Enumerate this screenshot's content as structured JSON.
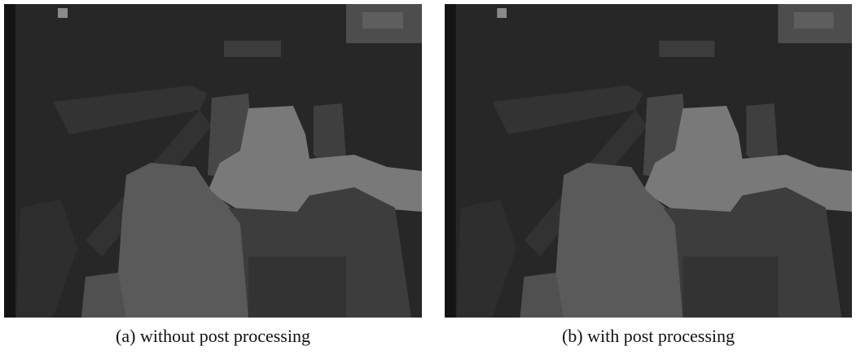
{
  "figure": {
    "panels": [
      {
        "caption": "(a) without post processing"
      },
      {
        "caption": "(b) with post processing"
      }
    ]
  }
}
